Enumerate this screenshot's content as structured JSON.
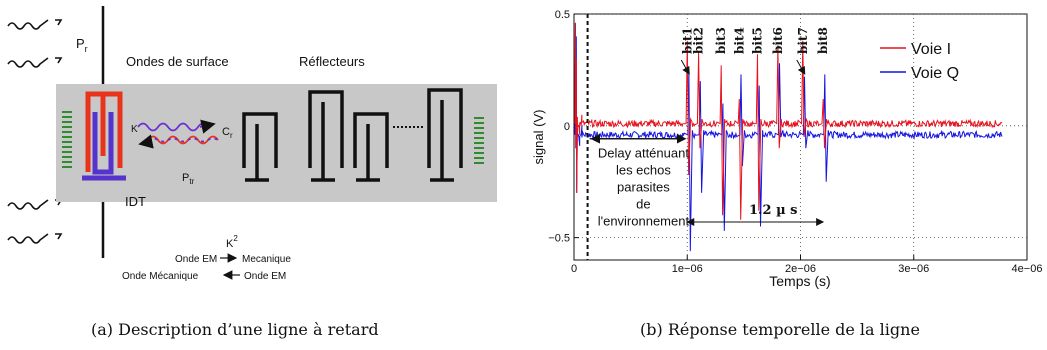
{
  "diagram": {
    "label_pr": "P",
    "label_pr_sub": "r",
    "label_surface_waves": "Ondes de surface",
    "label_reflectors": "Réflecteurs",
    "label_k": "K",
    "label_cr": "C",
    "label_cr_sub": "r",
    "label_ptr": "P",
    "label_ptr_sub": "tr",
    "label_idt": "IDT",
    "label_k2": "K",
    "label_k2_sup": "2",
    "conv1_left": "Onde EM",
    "conv1_right": "Mecanique",
    "conv2_left": "Onde Mécanique",
    "conv2_right": "Onde EM",
    "colors": {
      "substrate": "#c8c8c8",
      "idt_red": "#e8341c",
      "idt_blue": "#5533cc",
      "reflector": "#111111",
      "absorber": "#2e8b2e"
    }
  },
  "chart_data": {
    "type": "line",
    "xlabel": "Temps (s)",
    "ylabel": "signal (V)",
    "xlim": [
      0,
      4e-06
    ],
    "ylim": [
      -0.6,
      0.5
    ],
    "x_ticks": [
      {
        "value": 0,
        "label": "0"
      },
      {
        "value": 1e-06,
        "label": "1e−06"
      },
      {
        "value": 2e-06,
        "label": "2e−06"
      },
      {
        "value": 3e-06,
        "label": "3e−06"
      },
      {
        "value": 4e-06,
        "label": "4e−06"
      }
    ],
    "y_ticks": [
      {
        "value": 0.5,
        "label": "0.5"
      },
      {
        "value": 0,
        "label": "0"
      },
      {
        "value": -0.5,
        "label": "−0.5"
      }
    ],
    "grid": "dotted",
    "legend_position": "top-right",
    "series": [
      {
        "name": "Voie I",
        "color": "#e8111c",
        "baseline": 0.01
      },
      {
        "name": "Voie Q",
        "color": "#1515e0",
        "baseline": -0.04
      }
    ],
    "bits": [
      {
        "label": "bit1",
        "t": 1e-06,
        "i_peak": 0.38,
        "i_trough": -0.22,
        "q_peak": 0.25,
        "q_trough": -0.56
      },
      {
        "label": "bit2",
        "t": 1.1e-06,
        "i_peak": 0.33,
        "i_trough": -0.1,
        "q_peak": 0.2,
        "q_trough": -0.3
      },
      {
        "label": "bit3",
        "t": 1.3e-06,
        "i_peak": 0.27,
        "i_trough": -0.4,
        "q_peak": 0.1,
        "q_trough": -0.47
      },
      {
        "label": "bit4",
        "t": 1.46e-06,
        "i_peak": 0.12,
        "i_trough": -0.42,
        "q_peak": 0.23,
        "q_trough": -0.18
      },
      {
        "label": "bit5",
        "t": 1.62e-06,
        "i_peak": 0.32,
        "i_trough": -0.38,
        "q_peak": 0.18,
        "q_trough": -0.45
      },
      {
        "label": "bit6",
        "t": 1.8e-06,
        "i_peak": 0.36,
        "i_trough": -0.1,
        "q_peak": 0.28,
        "q_trough": -0.05
      },
      {
        "label": "bit7",
        "t": 2.02e-06,
        "i_peak": 0.38,
        "i_trough": -0.05,
        "q_peak": 0.22,
        "q_trough": -0.1
      },
      {
        "label": "bit8",
        "t": 2.2e-06,
        "i_peak": 0.12,
        "i_trough": -0.1,
        "q_peak": 0.23,
        "q_trough": -0.25
      }
    ],
    "delay_marker_t": 1.2e-07,
    "delay_annotation": [
      "Delay atténuant",
      "les echos",
      "parasites",
      "de",
      "l'environnement"
    ],
    "span_annotation": {
      "from": 1e-06,
      "to": 2.2e-06,
      "level": -0.43,
      "label": "1.2 µ s"
    }
  },
  "captions": {
    "a": "(a) Description d’une ligne à retard",
    "b": "(b) Réponse temporelle de la ligne"
  }
}
